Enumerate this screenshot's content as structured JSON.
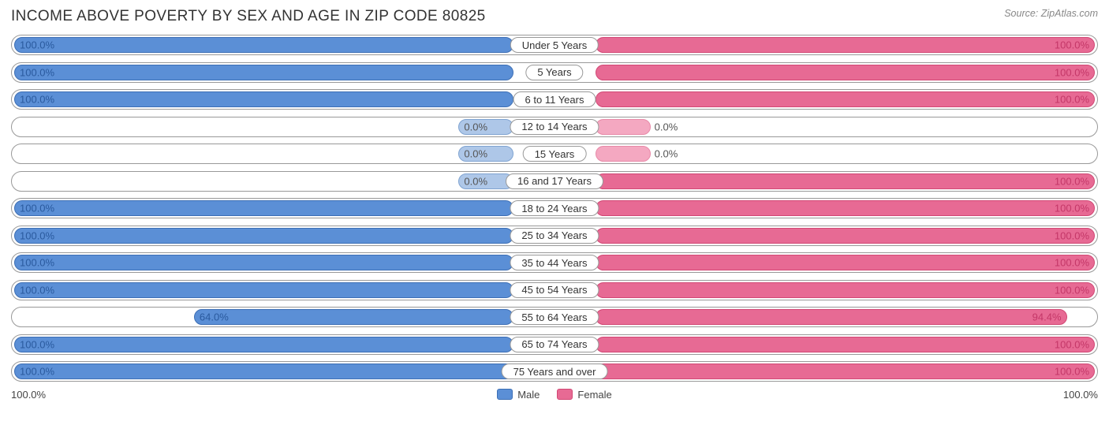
{
  "title": "INCOME ABOVE POVERTY BY SEX AND AGE IN ZIP CODE 80825",
  "source": "Source: ZipAtlas.com",
  "colors": {
    "male_fill": "#5b8fd6",
    "male_border": "#3d6fb5",
    "male_text": "#2a5a9e",
    "male_light_fill": "#aec7e8",
    "male_light_border": "#7fa3d1",
    "female_fill": "#e76a94",
    "female_border": "#d24875",
    "female_text": "#c43768",
    "female_light_fill": "#f4a8c1",
    "female_light_border": "#e88aa8",
    "row_border": "#999999",
    "bg": "#ffffff"
  },
  "axis": {
    "left": "100.0%",
    "right": "100.0%"
  },
  "legend": {
    "male": "Male",
    "female": "Female"
  },
  "min_bar_pct": 11,
  "rows": [
    {
      "category": "Under 5 Years",
      "male": 100.0,
      "female": 100.0,
      "male_label": "100.0%",
      "female_label": "100.0%",
      "male_light": false,
      "female_light": false
    },
    {
      "category": "5 Years",
      "male": 100.0,
      "female": 100.0,
      "male_label": "100.0%",
      "female_label": "100.0%",
      "male_light": false,
      "female_light": false
    },
    {
      "category": "6 to 11 Years",
      "male": 100.0,
      "female": 100.0,
      "male_label": "100.0%",
      "female_label": "100.0%",
      "male_light": false,
      "female_light": false
    },
    {
      "category": "12 to 14 Years",
      "male": 0.0,
      "female": 0.0,
      "male_label": "0.0%",
      "female_label": "0.0%",
      "male_light": true,
      "female_light": true
    },
    {
      "category": "15 Years",
      "male": 0.0,
      "female": 0.0,
      "male_label": "0.0%",
      "female_label": "0.0%",
      "male_light": true,
      "female_light": true
    },
    {
      "category": "16 and 17 Years",
      "male": 0.0,
      "female": 100.0,
      "male_label": "0.0%",
      "female_label": "100.0%",
      "male_light": true,
      "female_light": false
    },
    {
      "category": "18 to 24 Years",
      "male": 100.0,
      "female": 100.0,
      "male_label": "100.0%",
      "female_label": "100.0%",
      "male_light": false,
      "female_light": false
    },
    {
      "category": "25 to 34 Years",
      "male": 100.0,
      "female": 100.0,
      "male_label": "100.0%",
      "female_label": "100.0%",
      "male_light": false,
      "female_light": false
    },
    {
      "category": "35 to 44 Years",
      "male": 100.0,
      "female": 100.0,
      "male_label": "100.0%",
      "female_label": "100.0%",
      "male_light": false,
      "female_light": false
    },
    {
      "category": "45 to 54 Years",
      "male": 100.0,
      "female": 100.0,
      "male_label": "100.0%",
      "female_label": "100.0%",
      "male_light": false,
      "female_light": false
    },
    {
      "category": "55 to 64 Years",
      "male": 64.0,
      "female": 94.4,
      "male_label": "64.0%",
      "female_label": "94.4%",
      "male_light": false,
      "female_light": false
    },
    {
      "category": "65 to 74 Years",
      "male": 100.0,
      "female": 100.0,
      "male_label": "100.0%",
      "female_label": "100.0%",
      "male_light": false,
      "female_light": false
    },
    {
      "category": "75 Years and over",
      "male": 100.0,
      "female": 100.0,
      "male_label": "100.0%",
      "female_label": "100.0%",
      "male_light": false,
      "female_light": false
    }
  ]
}
